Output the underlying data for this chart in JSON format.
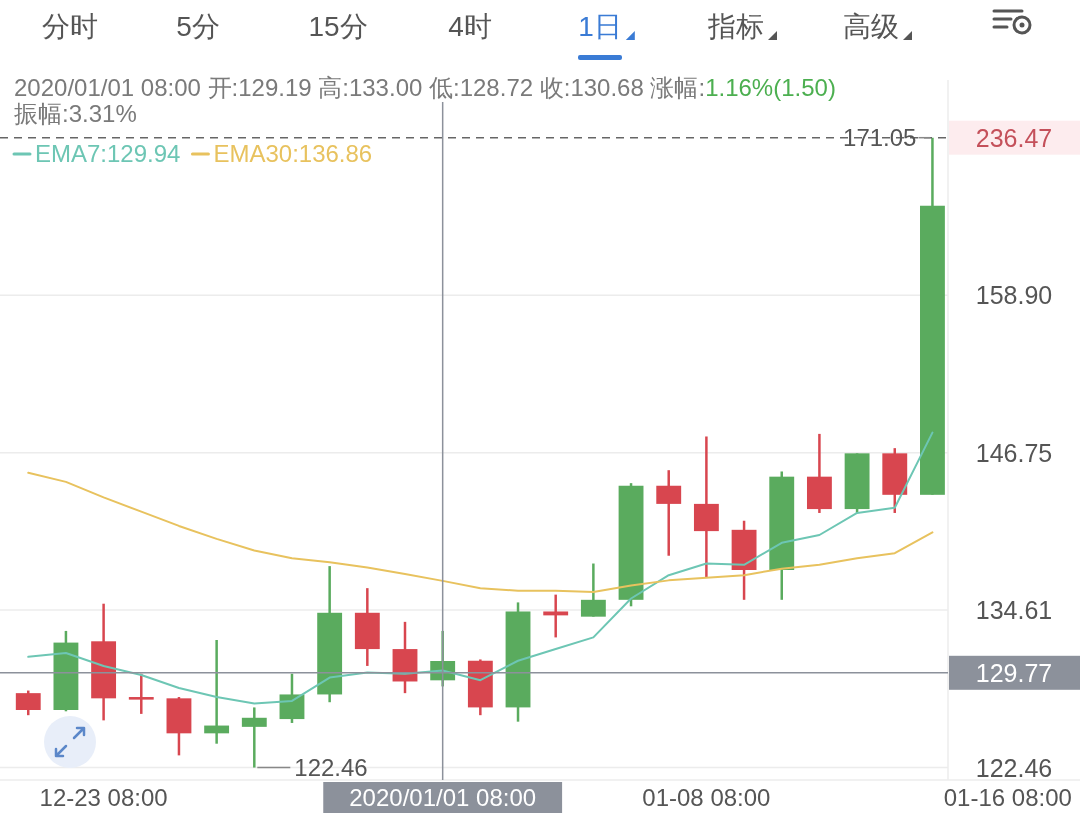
{
  "chart_data": {
    "type": "candlestick",
    "title": "2020/01/01 08:00 开:129.19 高:133.00 低:128.72 收:130.68 涨幅:",
    "subtitle": "振幅:3.31%",
    "annotations": [
      "分时",
      "5分",
      "15分",
      "4时",
      "1日",
      "指标",
      "高级",
      "1.16%(1.50)",
      "236.47",
      {
        "text": "171.05",
        "x": "2020-01-14T08:00",
        "y": 171.05
      },
      {
        "text": "122.46",
        "x": "2019-12-27T08:00",
        "y": 122.46
      }
    ],
    "x": [
      "2019-12-21T08:00",
      "2019-12-22T08:00",
      "2019-12-23T08:00",
      "2019-12-24T08:00",
      "2019-12-25T08:00",
      "2019-12-26T08:00",
      "2019-12-27T08:00",
      "2019-12-28T08:00",
      "2019-12-29T08:00",
      "2019-12-30T08:00",
      "2019-12-31T08:00",
      "2020-01-01T08:00",
      "2020-01-02T08:00",
      "2020-01-03T08:00",
      "2020-01-04T08:00",
      "2020-01-05T08:00",
      "2020-01-06T08:00",
      "2020-01-07T08:00",
      "2020-01-08T08:00",
      "2020-01-09T08:00",
      "2020-01-10T08:00",
      "2020-01-11T08:00",
      "2020-01-12T08:00",
      "2020-01-13T08:00",
      "2020-01-14T08:00"
    ],
    "ohlc": [
      [
        128.2,
        128.4,
        126.5,
        126.9
      ],
      [
        126.9,
        133.0,
        126.8,
        132.1
      ],
      [
        132.2,
        135.1,
        126.1,
        127.8
      ],
      [
        127.9,
        129.7,
        126.6,
        127.7
      ],
      [
        127.8,
        127.9,
        123.4,
        125.1
      ],
      [
        125.1,
        132.3,
        124.3,
        125.7
      ],
      [
        125.6,
        127.1,
        122.46,
        126.3
      ],
      [
        126.2,
        129.7,
        125.9,
        128.1
      ],
      [
        128.1,
        138.0,
        127.5,
        134.4
      ],
      [
        134.4,
        136.3,
        130.3,
        131.6
      ],
      [
        131.6,
        133.7,
        128.2,
        129.1
      ],
      [
        129.19,
        133.0,
        128.72,
        130.68
      ],
      [
        130.7,
        130.8,
        126.5,
        127.1
      ],
      [
        127.1,
        135.2,
        126.0,
        134.5
      ],
      [
        134.5,
        135.8,
        132.5,
        134.2
      ],
      [
        134.1,
        138.2,
        134.1,
        135.4
      ],
      [
        135.4,
        144.4,
        134.9,
        144.2
      ],
      [
        144.2,
        145.4,
        138.8,
        142.8
      ],
      [
        142.8,
        148.0,
        137.1,
        140.7
      ],
      [
        140.8,
        141.5,
        135.4,
        137.7
      ],
      [
        137.7,
        145.3,
        135.4,
        144.9
      ],
      [
        144.9,
        148.2,
        142.1,
        142.4
      ],
      [
        142.4,
        146.7,
        142.1,
        146.7
      ],
      [
        146.7,
        147.1,
        142.1,
        143.5
      ],
      [
        143.5,
        171.05,
        143.5,
        165.8
      ]
    ],
    "colors": [
      "#d8464f",
      "#5aab5e",
      "#d8464f",
      "#d8464f",
      "#d8464f",
      "#5aab5e",
      "#5aab5e",
      "#5aab5e",
      "#5aab5e",
      "#d8464f",
      "#d8464f",
      "#5aab5e",
      "#d8464f",
      "#5aab5e",
      "#d8464f",
      "#5aab5e",
      "#5aab5e",
      "#d8464f",
      "#d8464f",
      "#d8464f",
      "#5aab5e",
      "#d8464f",
      "#5aab5e",
      "#d8464f",
      "#5aab5e"
    ],
    "series": [
      {
        "name": "EMA7:129.94",
        "type": "line",
        "color": "#6dc6b4",
        "values": [
          131.0,
          131.3,
          130.3,
          129.6,
          128.6,
          127.9,
          127.4,
          127.6,
          129.4,
          129.8,
          129.7,
          129.94,
          129.2,
          130.7,
          131.6,
          132.5,
          135.5,
          137.3,
          138.2,
          138.1,
          139.8,
          140.4,
          142.1,
          142.5,
          148.3
        ]
      },
      {
        "name": "EMA30:136.86",
        "type": "line",
        "color": "#e8c25e",
        "values": [
          145.2,
          144.5,
          143.3,
          142.2,
          141.1,
          140.1,
          139.2,
          138.6,
          138.3,
          137.9,
          137.4,
          136.86,
          136.3,
          136.1,
          136.1,
          136.0,
          136.5,
          136.9,
          137.1,
          137.3,
          137.8,
          138.1,
          138.6,
          139.0,
          140.6
        ]
      }
    ],
    "xlim": [
      "2019-12-20T14:00",
      "2020-01-18T06:00"
    ],
    "xticks": [
      {
        "value": "2019-12-23T08:00",
        "label": "12-23 08:00"
      },
      {
        "value": "2020-01-08T08:00",
        "label": "01-08 08:00"
      },
      {
        "value": "2020-01-16T08:00",
        "label": "01-16 08:00"
      }
    ],
    "ylim": [
      121.5,
      175.5
    ],
    "yticks": [
      122.46,
      134.61,
      146.75,
      {
        "value": 158.9,
        "label": "158.90"
      }
    ],
    "ref_lines": [
      {
        "axis": "y",
        "value": 171.05,
        "line_style": "dashed",
        "color": "#666666"
      },
      {
        "axis": "y",
        "value": 129.77,
        "label": "129.77",
        "color": "#8c919b"
      },
      {
        "axis": "x",
        "value": "2020-01-01T08:00",
        "label": "2020/01/01 08:00",
        "color": "#8c919b"
      }
    ],
    "grid": "y",
    "legend": "top left"
  }
}
